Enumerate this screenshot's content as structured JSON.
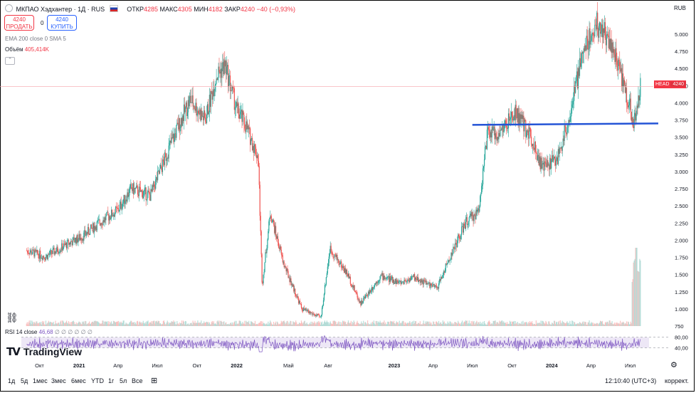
{
  "header": {
    "symbol": "МКПАО Хэдхантер · 1Д · RUS",
    "ohlc": [
      {
        "label": "ОТКР",
        "value": "4285"
      },
      {
        "label": "МАКС",
        "value": "4305"
      },
      {
        "label": "МИН",
        "value": "4182"
      },
      {
        "label": "ЗАКР",
        "value": "4240"
      }
    ],
    "change": "−40 (−0,93%)",
    "currency": "RUB"
  },
  "trade": {
    "sell_price": "4240",
    "sell_label": "ПРОДАТЬ",
    "spread": "0",
    "buy_price": "4240",
    "buy_label": "КУПИТЬ"
  },
  "indicators": {
    "ema": "EMA 200 close 0 SMA 5",
    "volume_label": "Объём",
    "volume_value": "405,414K",
    "rsi_label": "RSI 14 close",
    "rsi_value": "46,68",
    "rsi_extra": "∅ ∅ ∅ ∅ ∅ ∅"
  },
  "price_axis": {
    "ticks": [
      "5.000",
      "4.750",
      "4.500",
      "4.250",
      "4.000",
      "3.750",
      "3.500",
      "3.250",
      "3.000",
      "2.750",
      "2.500",
      "2.250",
      "2.000",
      "1.750",
      "1.500",
      "1.250",
      "1.000",
      "750"
    ],
    "last_label": "HEAD",
    "last_value": "4240"
  },
  "rsi_axis": {
    "ticks": [
      "80,00",
      "40,00"
    ]
  },
  "time_axis": {
    "labels": [
      "Окт",
      "2021",
      "Апр",
      "Июл",
      "Окт",
      "2022",
      "Май",
      "Авг",
      "2023",
      "Апр",
      "Июл",
      "Окт",
      "2024",
      "Апр",
      "Июл"
    ]
  },
  "bottom": {
    "timeframes": [
      "1д",
      "5д",
      "1мес",
      "3мес",
      "6мес",
      "YTD",
      "1г",
      "5л",
      "Все"
    ],
    "clock": "12:10:40 (UTC+3)",
    "adjust": "коррект."
  },
  "branding": {
    "logo_text": "TradingView"
  },
  "colors": {
    "up": "#26a69a",
    "down": "#ef5350",
    "support_line": "#2454d6",
    "rsi_line": "#7e57c2",
    "rsi_band": "#ede7f6",
    "last_price": "#f23645"
  },
  "chart_data": {
    "type": "candlestick",
    "x_start": "2020-09",
    "x_end": "2024-08",
    "y_range": [
      700,
      5400
    ],
    "anchors": [
      [
        "2020-09-01",
        1850
      ],
      [
        "2020-10-15",
        1760
      ],
      [
        "2020-12-15",
        1980
      ],
      [
        "2021-01-10",
        2060
      ],
      [
        "2021-02-15",
        2250
      ],
      [
        "2021-04-01",
        2440
      ],
      [
        "2021-05-01",
        2750
      ],
      [
        "2021-06-15",
        2650
      ],
      [
        "2021-08-01",
        3400
      ],
      [
        "2021-09-15",
        4050
      ],
      [
        "2021-10-20",
        3750
      ],
      [
        "2021-11-15",
        4400
      ],
      [
        "2021-12-05",
        4550
      ],
      [
        "2022-01-01",
        3900
      ],
      [
        "2022-01-20",
        3700
      ],
      [
        "2022-02-20",
        3200
      ],
      [
        "2022-03-01",
        1350
      ],
      [
        "2022-03-20",
        2400
      ],
      [
        "2022-04-20",
        1650
      ],
      [
        "2022-06-01",
        1000
      ],
      [
        "2022-07-15",
        870
      ],
      [
        "2022-08-05",
        1880
      ],
      [
        "2022-09-15",
        1500
      ],
      [
        "2022-10-15",
        1080
      ],
      [
        "2022-12-01",
        1480
      ],
      [
        "2023-01-15",
        1380
      ],
      [
        "2023-02-15",
        1460
      ],
      [
        "2023-04-10",
        1300
      ],
      [
        "2023-05-01",
        1620
      ],
      [
        "2023-06-15",
        2250
      ],
      [
        "2023-07-15",
        2420
      ],
      [
        "2023-08-05",
        3550
      ],
      [
        "2023-09-01",
        3550
      ],
      [
        "2023-10-10",
        3850
      ],
      [
        "2023-11-15",
        3500
      ],
      [
        "2023-12-10",
        3050
      ],
      [
        "2024-01-15",
        3200
      ],
      [
        "2024-02-15",
        3900
      ],
      [
        "2024-03-15",
        4800
      ],
      [
        "2024-04-15",
        5150
      ],
      [
        "2024-05-15",
        4900
      ],
      [
        "2024-06-10",
        4400
      ],
      [
        "2024-07-10",
        3700
      ],
      [
        "2024-07-25",
        4240
      ]
    ],
    "support_line": {
      "from": [
        "2023-07-01",
        3680
      ],
      "to": [
        "2024-08-15",
        3700
      ]
    },
    "volume_spike_date": "2024-07-15",
    "rsi_levels": [
      80,
      40
    ]
  }
}
